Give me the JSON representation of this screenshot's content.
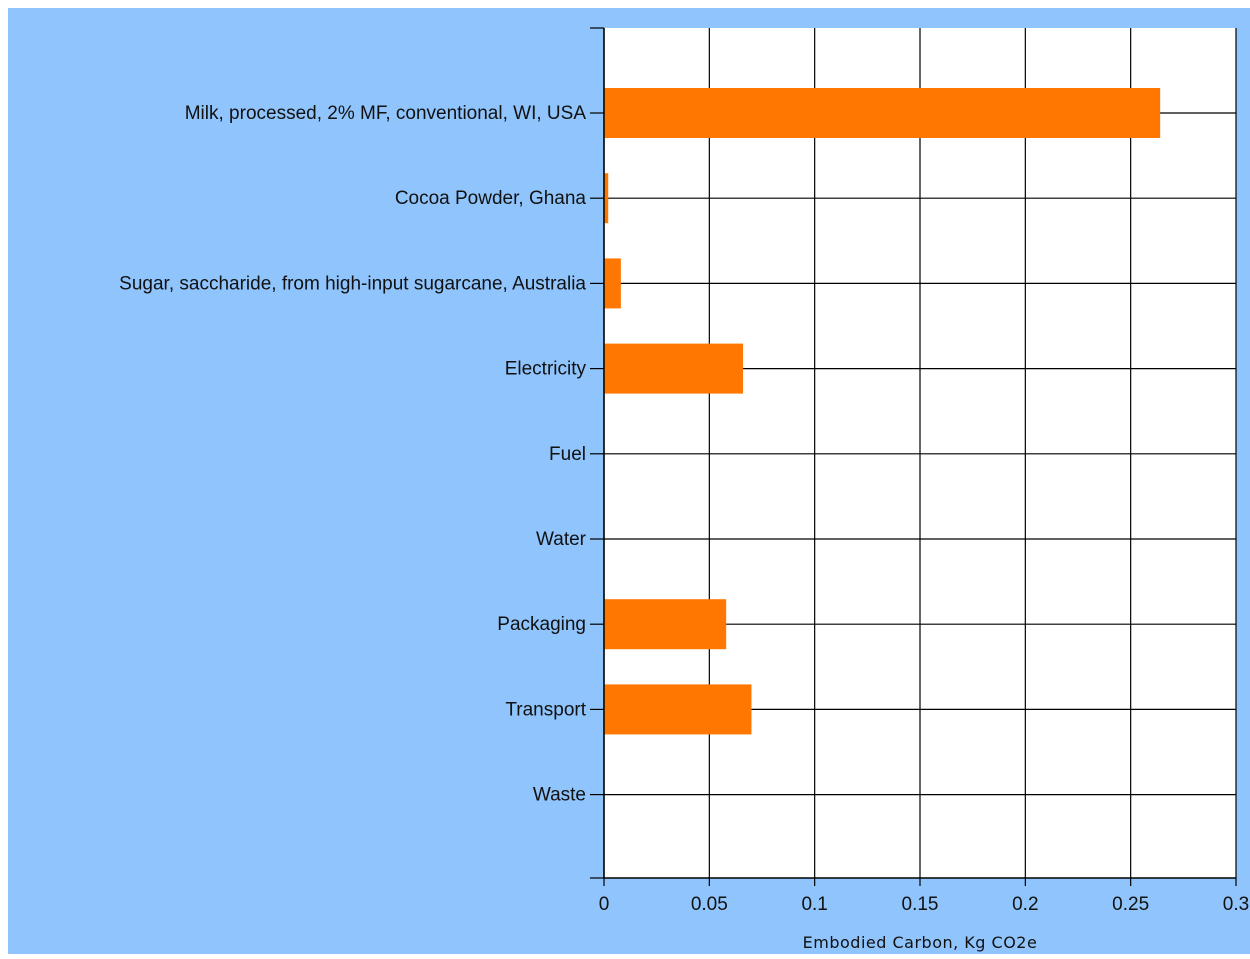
{
  "colors": {
    "panel_background": "#90C4FC",
    "plot_background": "#FFFFFF",
    "bar_fill": "#FF7700",
    "grid_line": "#000000"
  },
  "chart_data": {
    "type": "bar",
    "orientation": "horizontal",
    "categories": [
      "Milk, processed, 2% MF, conventional, WI, USA",
      "Cocoa Powder, Ghana",
      "Sugar, saccharide, from high-input sugarcane, Australia",
      "Electricity",
      "Fuel",
      "Water",
      "Packaging",
      "Transport",
      "Waste"
    ],
    "values": [
      0.264,
      0.002,
      0.008,
      0.066,
      0,
      0,
      0.058,
      0.07,
      0
    ],
    "title": "",
    "xlabel": "Embodied Carbon, Kg CO2e",
    "ylabel": "",
    "xlim": [
      0,
      0.3
    ],
    "x_ticks": [
      0,
      0.05,
      0.1,
      0.15,
      0.2,
      0.25,
      0.3
    ],
    "x_tick_labels": [
      "0",
      "0.05",
      "0.1",
      "0.15",
      "0.2",
      "0.25",
      "0.3"
    ],
    "grid": true,
    "legend": "none"
  }
}
